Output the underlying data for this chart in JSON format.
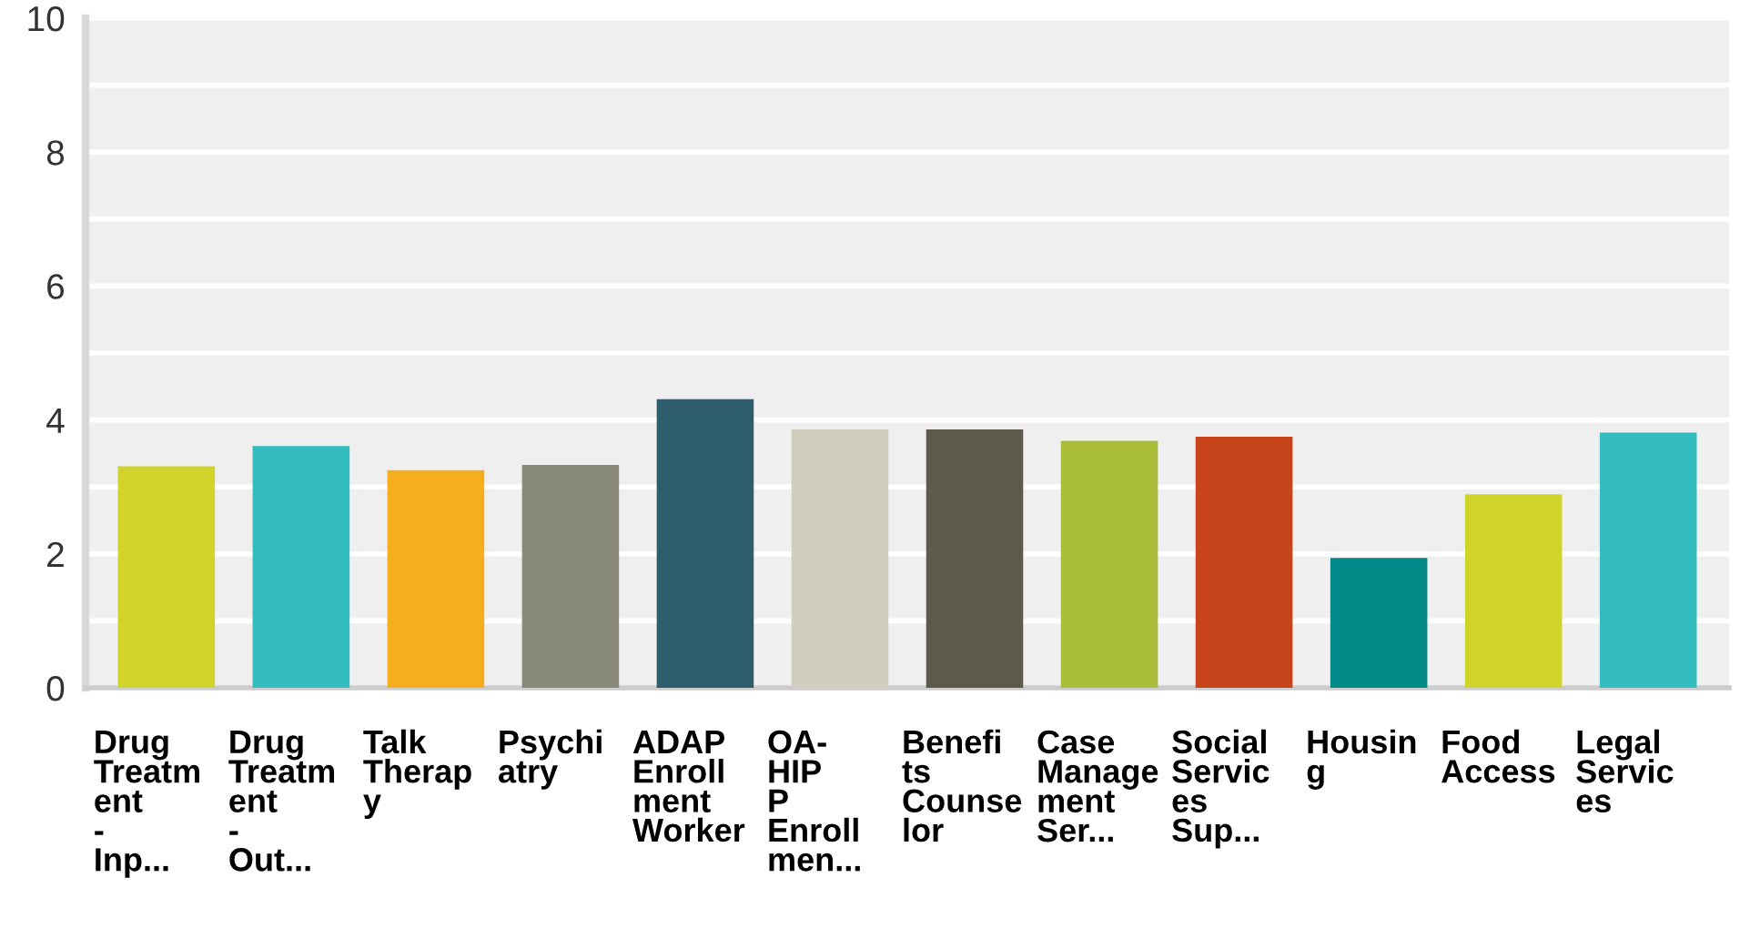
{
  "chart_data": {
    "type": "bar",
    "categories": [
      "Drug\nTreatm\nent\n-\nInp...",
      "Drug\nTreatm\nent\n-\nOut...",
      "Talk\nTherap\ny",
      "Psychi\natry",
      "ADAP\nEnroll\nment\nWorker",
      "OA-\nHIP\nP\nEnroll\nmen...",
      "Benefi\nts\nCounse\nlor",
      "Case\nManage\nment\nSer...",
      "Social\nServic\nes\nSup...",
      "Housin\ng",
      "Food\nAccess",
      "Legal\nServic\nes"
    ],
    "values": [
      3.31,
      3.61,
      3.25,
      3.33,
      4.31,
      3.86,
      3.86,
      3.69,
      3.75,
      1.94,
      2.89,
      3.81
    ],
    "colors": [
      "#d0d42a",
      "#33bdbf",
      "#f5af1e",
      "#8a8a7a",
      "#2e5e6d",
      "#d0cec0",
      "#5c5a4b",
      "#aabd3a",
      "#c8451b",
      "#028a89",
      "#d0d42a",
      "#33bdbf"
    ],
    "ylim": [
      0,
      10
    ],
    "yticks": [
      0,
      {
        "value": 1,
        "label": null
      },
      2,
      {
        "value": 3,
        "label": null
      },
      4,
      {
        "value": 5,
        "label": null
      },
      6,
      {
        "value": 7,
        "label": null
      },
      8,
      {
        "value": 9,
        "label": null
      },
      10
    ],
    "grid": "y",
    "legend": false
  }
}
